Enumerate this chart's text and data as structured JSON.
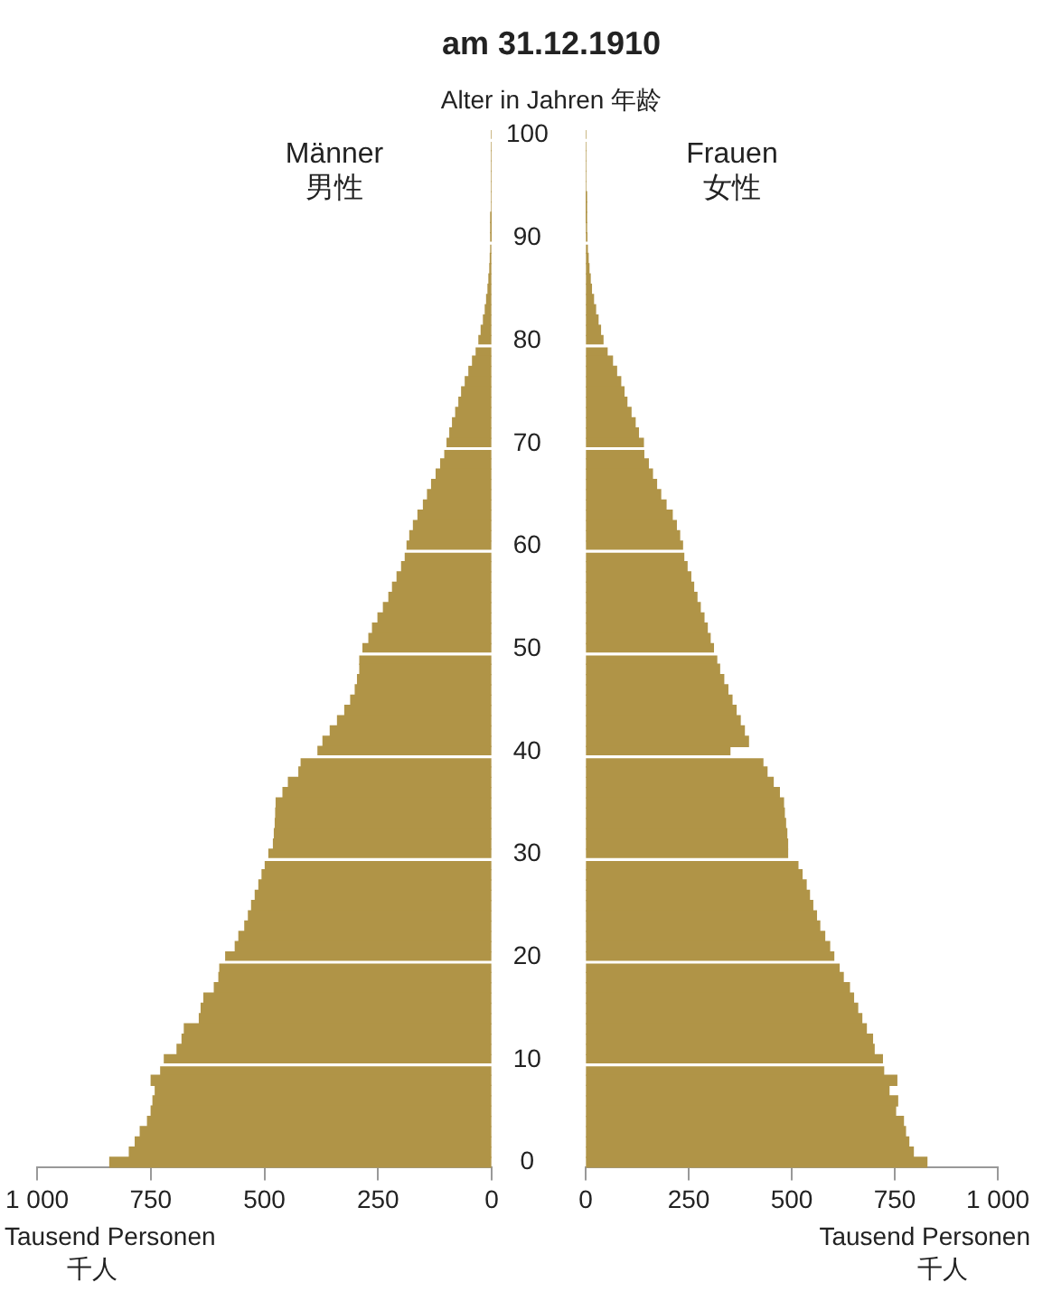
{
  "chart_data": [
    {
      "type": "bar",
      "orientation": "horizontal",
      "title": "am 31.12.1910",
      "ylabel": "Alter in Jahren 年龄",
      "xlabel": "Tausend Personen\n千人",
      "categories": [
        "100",
        null,
        null,
        null,
        null,
        null,
        null,
        null,
        null,
        null,
        "90",
        null,
        null,
        null,
        null,
        null,
        null,
        null,
        null,
        null,
        "80",
        null,
        null,
        null,
        null,
        null,
        null,
        null,
        null,
        null,
        "70",
        null,
        null,
        null,
        null,
        null,
        null,
        null,
        null,
        null,
        "60",
        null,
        null,
        null,
        null,
        null,
        null,
        null,
        null,
        null,
        "50",
        null,
        null,
        null,
        null,
        null,
        null,
        null,
        null,
        null,
        "40",
        null,
        null,
        null,
        null,
        null,
        null,
        null,
        null,
        null,
        "30",
        null,
        null,
        null,
        null,
        null,
        null,
        null,
        null,
        null,
        "20",
        null,
        null,
        null,
        null,
        null,
        null,
        null,
        null,
        null,
        "10",
        null,
        null,
        null,
        null,
        null,
        null,
        null,
        null,
        null,
        "0"
      ],
      "xlim": [
        1000,
        0
      ],
      "xticks": [
        {
          "value": 1000,
          "label": "1 000"
        },
        750,
        500,
        250,
        0
      ],
      "grid": "y",
      "series": [
        {
          "name": "Männer\n男性",
          "color": "#b09447",
          "values": [
            0,
            0,
            0,
            0,
            0,
            0,
            0,
            0,
            1,
            1,
            1,
            2,
            3,
            4,
            6,
            8,
            11,
            14,
            18,
            23,
            28,
            34,
            42,
            50,
            58,
            66,
            72,
            79,
            86,
            92,
            98,
            103,
            112,
            122,
            132,
            141,
            150,
            162,
            172,
            180,
            186,
            190,
            198,
            208,
            218,
            226,
            238,
            250,
            262,
            270,
            283,
            290,
            290,
            295,
            300,
            310,
            323,
            339,
            355,
            371,
            382,
            419,
            424,
            447,
            459,
            474,
            475,
            476,
            478,
            480,
            490,
            498,
            505,
            512,
            520,
            528,
            535,
            543,
            556,
            564,
            585,
            598,
            600,
            610,
            633,
            639,
            643,
            676,
            681,
            692,
            720,
            728,
            749,
            740,
            745,
            749,
            757,
            773,
            784,
            797,
            840
          ]
        }
      ]
    },
    {
      "type": "bar",
      "orientation": "horizontal",
      "xlabel": "Tausend Personen\n千人",
      "tick_labels": "x",
      "categories": [
        "100",
        null,
        null,
        null,
        null,
        null,
        null,
        null,
        null,
        null,
        "90",
        null,
        null,
        null,
        null,
        null,
        null,
        null,
        null,
        null,
        "80",
        null,
        null,
        null,
        null,
        null,
        null,
        null,
        null,
        null,
        "70",
        null,
        null,
        null,
        null,
        null,
        null,
        null,
        null,
        null,
        "60",
        null,
        null,
        null,
        null,
        null,
        null,
        null,
        null,
        null,
        "50",
        null,
        null,
        null,
        null,
        null,
        null,
        null,
        null,
        null,
        "40",
        null,
        null,
        null,
        null,
        null,
        null,
        null,
        null,
        null,
        "30",
        null,
        null,
        null,
        null,
        null,
        null,
        null,
        null,
        null,
        "20",
        null,
        null,
        null,
        null,
        null,
        null,
        null,
        null,
        null,
        "10",
        null,
        null,
        null,
        null,
        null,
        null,
        null,
        null,
        null,
        "0"
      ],
      "xlim": [
        0,
        1000
      ],
      "xticks": [
        0,
        250,
        500,
        750,
        {
          "value": 1000,
          "label": "1 000"
        }
      ],
      "grid": "y",
      "series": [
        {
          "name": "Frauen\n女性",
          "color": "#b09447",
          "values": [
            0,
            0,
            0,
            0,
            0,
            0,
            1,
            1,
            1,
            2,
            3,
            4,
            6,
            8,
            11,
            14,
            19,
            24,
            30,
            36,
            42,
            52,
            65,
            75,
            85,
            93,
            100,
            110,
            120,
            128,
            140,
            141,
            152,
            162,
            172,
            182,
            195,
            210,
            220,
            228,
            235,
            238,
            246,
            255,
            262,
            270,
            278,
            287,
            295,
            302,
            310,
            318,
            325,
            335,
            345,
            355,
            365,
            375,
            385,
            395,
            350,
            430,
            440,
            455,
            470,
            480,
            482,
            485,
            488,
            490,
            490,
            515,
            525,
            535,
            543,
            551,
            560,
            568,
            580,
            592,
            602,
            615,
            625,
            640,
            650,
            660,
            670,
            681,
            696,
            700,
            720,
            723,
            755,
            736,
            757,
            752,
            771,
            776,
            784,
            795,
            828
          ]
        }
      ]
    }
  ]
}
